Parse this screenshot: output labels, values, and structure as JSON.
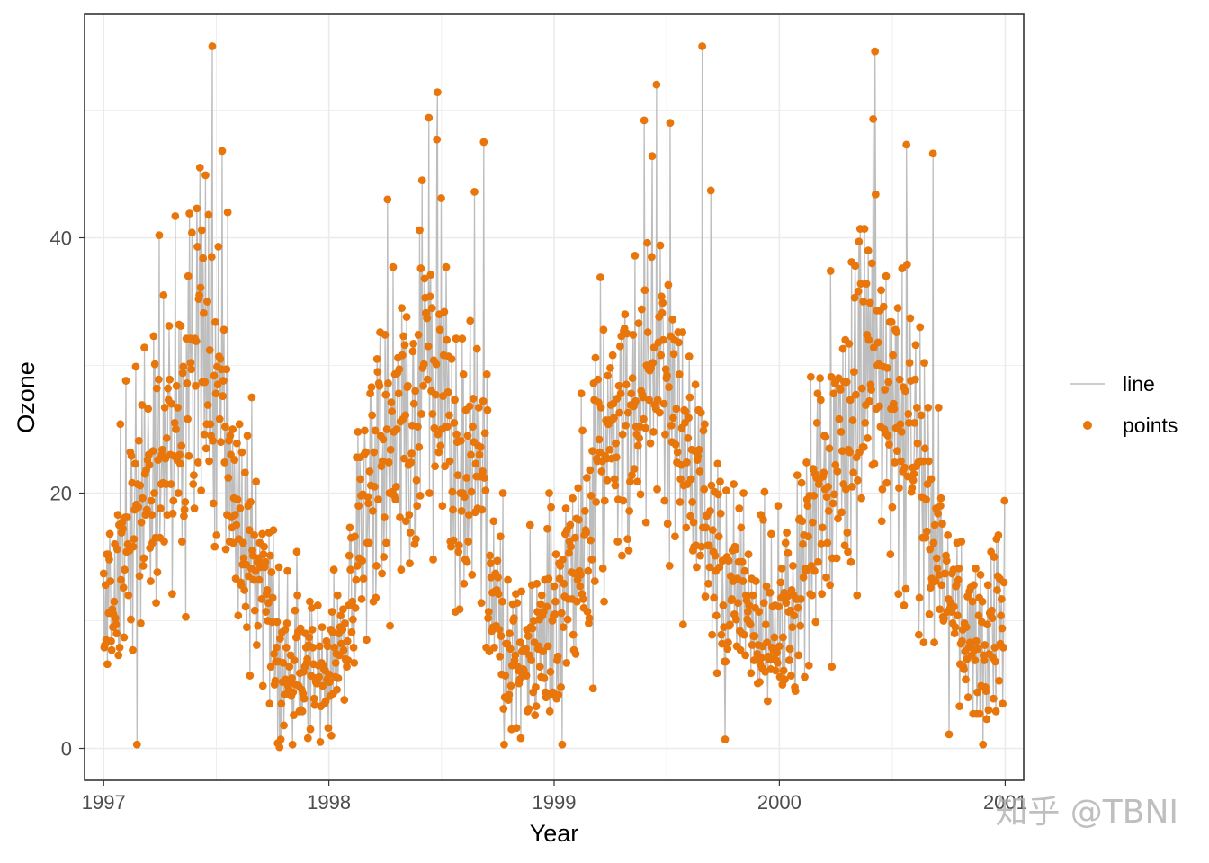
{
  "chart_data": {
    "type": "line",
    "title": "",
    "xlabel": "Year",
    "ylabel": "Ozone",
    "xlim": [
      "1996-12-01",
      "2001-01-31"
    ],
    "ylim": [
      -2.5,
      57.5
    ],
    "x_ticks": [
      "1997",
      "1998",
      "1999",
      "2000",
      "2001"
    ],
    "y_ticks": [
      0,
      20,
      40
    ],
    "grid": true,
    "legend_position": "right",
    "legend": [
      {
        "label": "line",
        "kind": "line",
        "color": "#bdbdbd"
      },
      {
        "label": "points",
        "kind": "point",
        "color": "#e8760b"
      }
    ],
    "colors": {
      "line": "#bdbdbd",
      "points": "#e8760b",
      "panel_border": "#333333",
      "grid": "#ebebeb"
    },
    "series": [
      {
        "name": "points",
        "note_days": "approximate daily series; x values are dates",
        "x_start": "1997-01-01",
        "x_end": "2000-12-31",
        "anchors": [
          [
            "1997-01-01",
            10
          ],
          [
            "1997-02-01",
            14
          ],
          [
            "1997-03-01",
            20
          ],
          [
            "1997-04-01",
            22
          ],
          [
            "1997-05-01",
            26
          ],
          [
            "1997-06-01",
            30
          ],
          [
            "1997-07-01",
            28
          ],
          [
            "1997-08-01",
            19
          ],
          [
            "1997-09-01",
            14
          ],
          [
            "1997-10-01",
            9
          ],
          [
            "1997-11-01",
            7
          ],
          [
            "1997-12-01",
            6
          ],
          [
            "1998-01-01",
            6
          ],
          [
            "1998-02-01",
            11
          ],
          [
            "1998-03-01",
            19
          ],
          [
            "1998-04-01",
            24
          ],
          [
            "1998-05-01",
            26
          ],
          [
            "1998-06-01",
            30
          ],
          [
            "1998-07-01",
            28
          ],
          [
            "1998-08-01",
            24
          ],
          [
            "1998-09-01",
            22
          ],
          [
            "1998-10-01",
            12
          ],
          [
            "1998-11-01",
            8
          ],
          [
            "1998-12-01",
            8
          ],
          [
            "1999-01-01",
            9
          ],
          [
            "1999-02-01",
            13
          ],
          [
            "1999-03-01",
            20
          ],
          [
            "1999-04-01",
            24
          ],
          [
            "1999-05-01",
            27
          ],
          [
            "1999-06-01",
            30
          ],
          [
            "1999-07-01",
            27
          ],
          [
            "1999-08-01",
            22
          ],
          [
            "1999-09-01",
            19
          ],
          [
            "1999-10-01",
            13
          ],
          [
            "1999-11-01",
            11
          ],
          [
            "1999-12-01",
            10
          ],
          [
            "2000-01-01",
            10
          ],
          [
            "2000-02-01",
            13
          ],
          [
            "2000-03-01",
            20
          ],
          [
            "2000-04-01",
            23
          ],
          [
            "2000-05-01",
            26
          ],
          [
            "2000-06-01",
            28
          ],
          [
            "2000-07-01",
            27
          ],
          [
            "2000-08-01",
            24
          ],
          [
            "2000-09-01",
            18
          ],
          [
            "2000-10-01",
            12
          ],
          [
            "2000-11-01",
            8
          ],
          [
            "2000-12-01",
            7
          ],
          [
            "2000-12-31",
            10
          ]
        ],
        "peaks": [
          [
            "1997-04-01",
            40.2
          ],
          [
            "1997-06-01",
            42.3
          ],
          [
            "1997-06-26",
            55.0
          ],
          [
            "1997-07-12",
            46.8
          ],
          [
            "1997-07-21",
            42.0
          ],
          [
            "1997-10-13",
            0.1
          ],
          [
            "1998-04-06",
            43.0
          ],
          [
            "1998-06-25",
            47.7
          ],
          [
            "1998-08-25",
            43.6
          ],
          [
            "1998-09-09",
            47.5
          ],
          [
            "1998-11-08",
            0.8
          ],
          [
            "1999-05-27",
            49.2
          ],
          [
            "1999-06-16",
            52.0
          ],
          [
            "1999-07-08",
            49.0
          ],
          [
            "1999-08-29",
            55.0
          ],
          [
            "1999-09-12",
            43.7
          ],
          [
            "2000-06-04",
            54.6
          ],
          [
            "2000-06-01",
            49.3
          ],
          [
            "2000-07-25",
            47.3
          ],
          [
            "2000-09-06",
            46.6
          ],
          [
            "2000-12-02",
            2.3
          ]
        ]
      }
    ]
  },
  "watermark": "知乎 @TBNI"
}
